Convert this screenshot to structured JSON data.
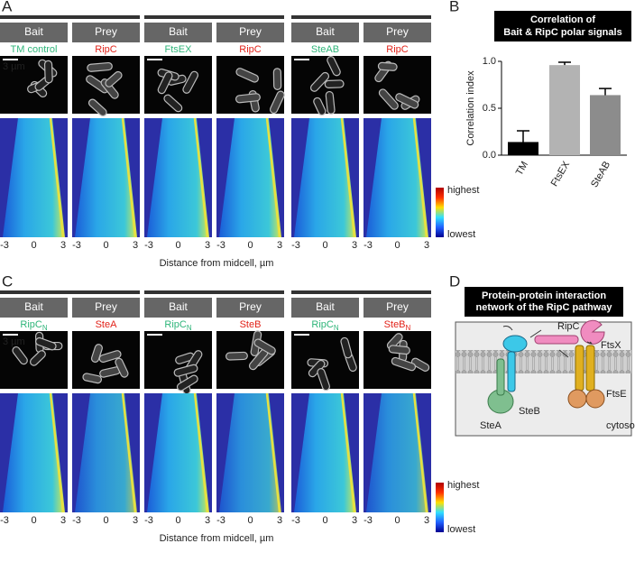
{
  "panels": [
    {
      "letter": "A",
      "groups": [
        {
          "bait": "Bait",
          "prey": "Prey",
          "bait_label": {
            "text": "TM control"
          },
          "prey_label": {
            "text": "RipC"
          }
        },
        {
          "bait": "Bait",
          "prey": "Prey",
          "bait_label": {
            "text": "FtsEX"
          },
          "prey_label": {
            "text": "RipC"
          }
        },
        {
          "bait": "Bait",
          "prey": "Prey",
          "bait_label": {
            "text": "SteAB"
          },
          "prey_label": {
            "text": "RipC"
          }
        }
      ],
      "scale_bar": "3 µm",
      "ticks": [
        -3,
        0,
        3
      ],
      "axis_label": "Distance from midcell, µm",
      "colorbar": {
        "high": "highest",
        "low": "lowest"
      }
    },
    {
      "letter": "C",
      "groups": [
        {
          "bait": "Bait",
          "prey": "Prey",
          "bait_label": {
            "text": "RipC",
            "sub": "N"
          },
          "prey_label": {
            "text": "SteA"
          }
        },
        {
          "bait": "Bait",
          "prey": "Prey",
          "bait_label": {
            "text": "RipC",
            "sub": "N"
          },
          "prey_label": {
            "text": "SteB"
          }
        },
        {
          "bait": "Bait",
          "prey": "Prey",
          "bait_label": {
            "text": "RipC",
            "sub": "N"
          },
          "prey_label": {
            "text": "SteB",
            "sub": "N"
          }
        }
      ],
      "scale_bar": "3 µm",
      "ticks": [
        -3,
        0,
        3
      ],
      "axis_label": "Distance from midcell, µm",
      "colorbar": {
        "high": "highest",
        "low": "lowest"
      }
    }
  ],
  "chart_data": {
    "type": "bar",
    "panel": "B",
    "title_lines": [
      "Correlation of",
      "Bait & RipC polar signals"
    ],
    "ylabel": "Correlation index",
    "categories": [
      "TM",
      "FtsEX",
      "SteAB"
    ],
    "values": [
      0.14,
      0.96,
      0.64
    ],
    "errors": [
      0.12,
      0.03,
      0.07
    ],
    "colors": [
      "#000000",
      "#b3b3b3",
      "#8c8c8c"
    ],
    "ylim": [
      0,
      1
    ],
    "yticks": [
      {
        "value": 0,
        "label": "0.0"
      },
      0.5,
      {
        "value": 1,
        "label": "1.0"
      }
    ]
  },
  "diagram": {
    "letter": "D",
    "title_lines": [
      "Protein-protein interaction",
      "network of the RipC pathway"
    ],
    "labels": {
      "ripc": "RipC",
      "ftsx": "FtsX",
      "ftse": "FtsE",
      "steb": "SteB",
      "stea": "SteA",
      "cytosol": "cytosol"
    }
  }
}
